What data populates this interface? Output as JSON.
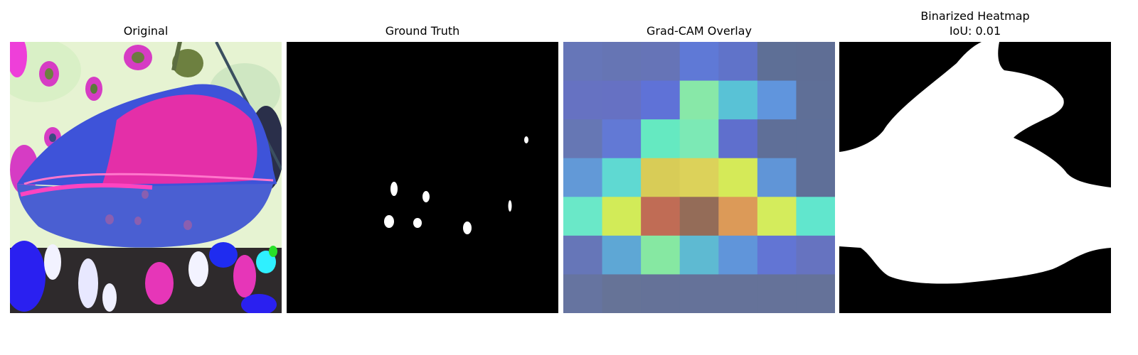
{
  "figure": {
    "panels": [
      {
        "title": "Original",
        "subtitle": ""
      },
      {
        "title": "Ground Truth",
        "subtitle": ""
      },
      {
        "title": "Grad-CAM Overlay",
        "subtitle": ""
      },
      {
        "title": "Binarized Heatmap",
        "subtitle": "IoU: 0.01"
      }
    ]
  },
  "gradcam_grid": {
    "rows": 7,
    "cols": 7,
    "colors": [
      [
        "#6676b8",
        "#6675b4",
        "#6674b7",
        "#5f79d6",
        "#6073c9",
        "#5e6f96",
        "#5f6e95"
      ],
      [
        "#6672c2",
        "#6671c3",
        "#5f72d7",
        "#88e8a8",
        "#59c2d6",
        "#6095dd",
        "#5f6f97"
      ],
      [
        "#6677b4",
        "#6279d5",
        "#65e9c1",
        "#7ce9b5",
        "#5f6fcd",
        "#5f6f98",
        "#5f6f98"
      ],
      [
        "#6299d7",
        "#5fd9d2",
        "#d8cc57",
        "#dcd25a",
        "#d5ea58",
        "#6095d7",
        "#5f6f98"
      ],
      [
        "#6ae8c8",
        "#d2eb58",
        "#c06c55",
        "#946c58",
        "#dc9a58",
        "#d4ec5c",
        "#61e6cd"
      ],
      [
        "#6676b8",
        "#5ea7d5",
        "#86e8a2",
        "#5ebad2",
        "#6095da",
        "#6275d4",
        "#6673c0"
      ],
      [
        "#6674a0",
        "#667397",
        "#657298",
        "#657299",
        "#657299",
        "#657299",
        "#657299"
      ]
    ]
  },
  "colors": {
    "page_background": "#ffffff",
    "text": "#000000",
    "mask_background": "#000000",
    "mask_foreground": "#ffffff"
  }
}
